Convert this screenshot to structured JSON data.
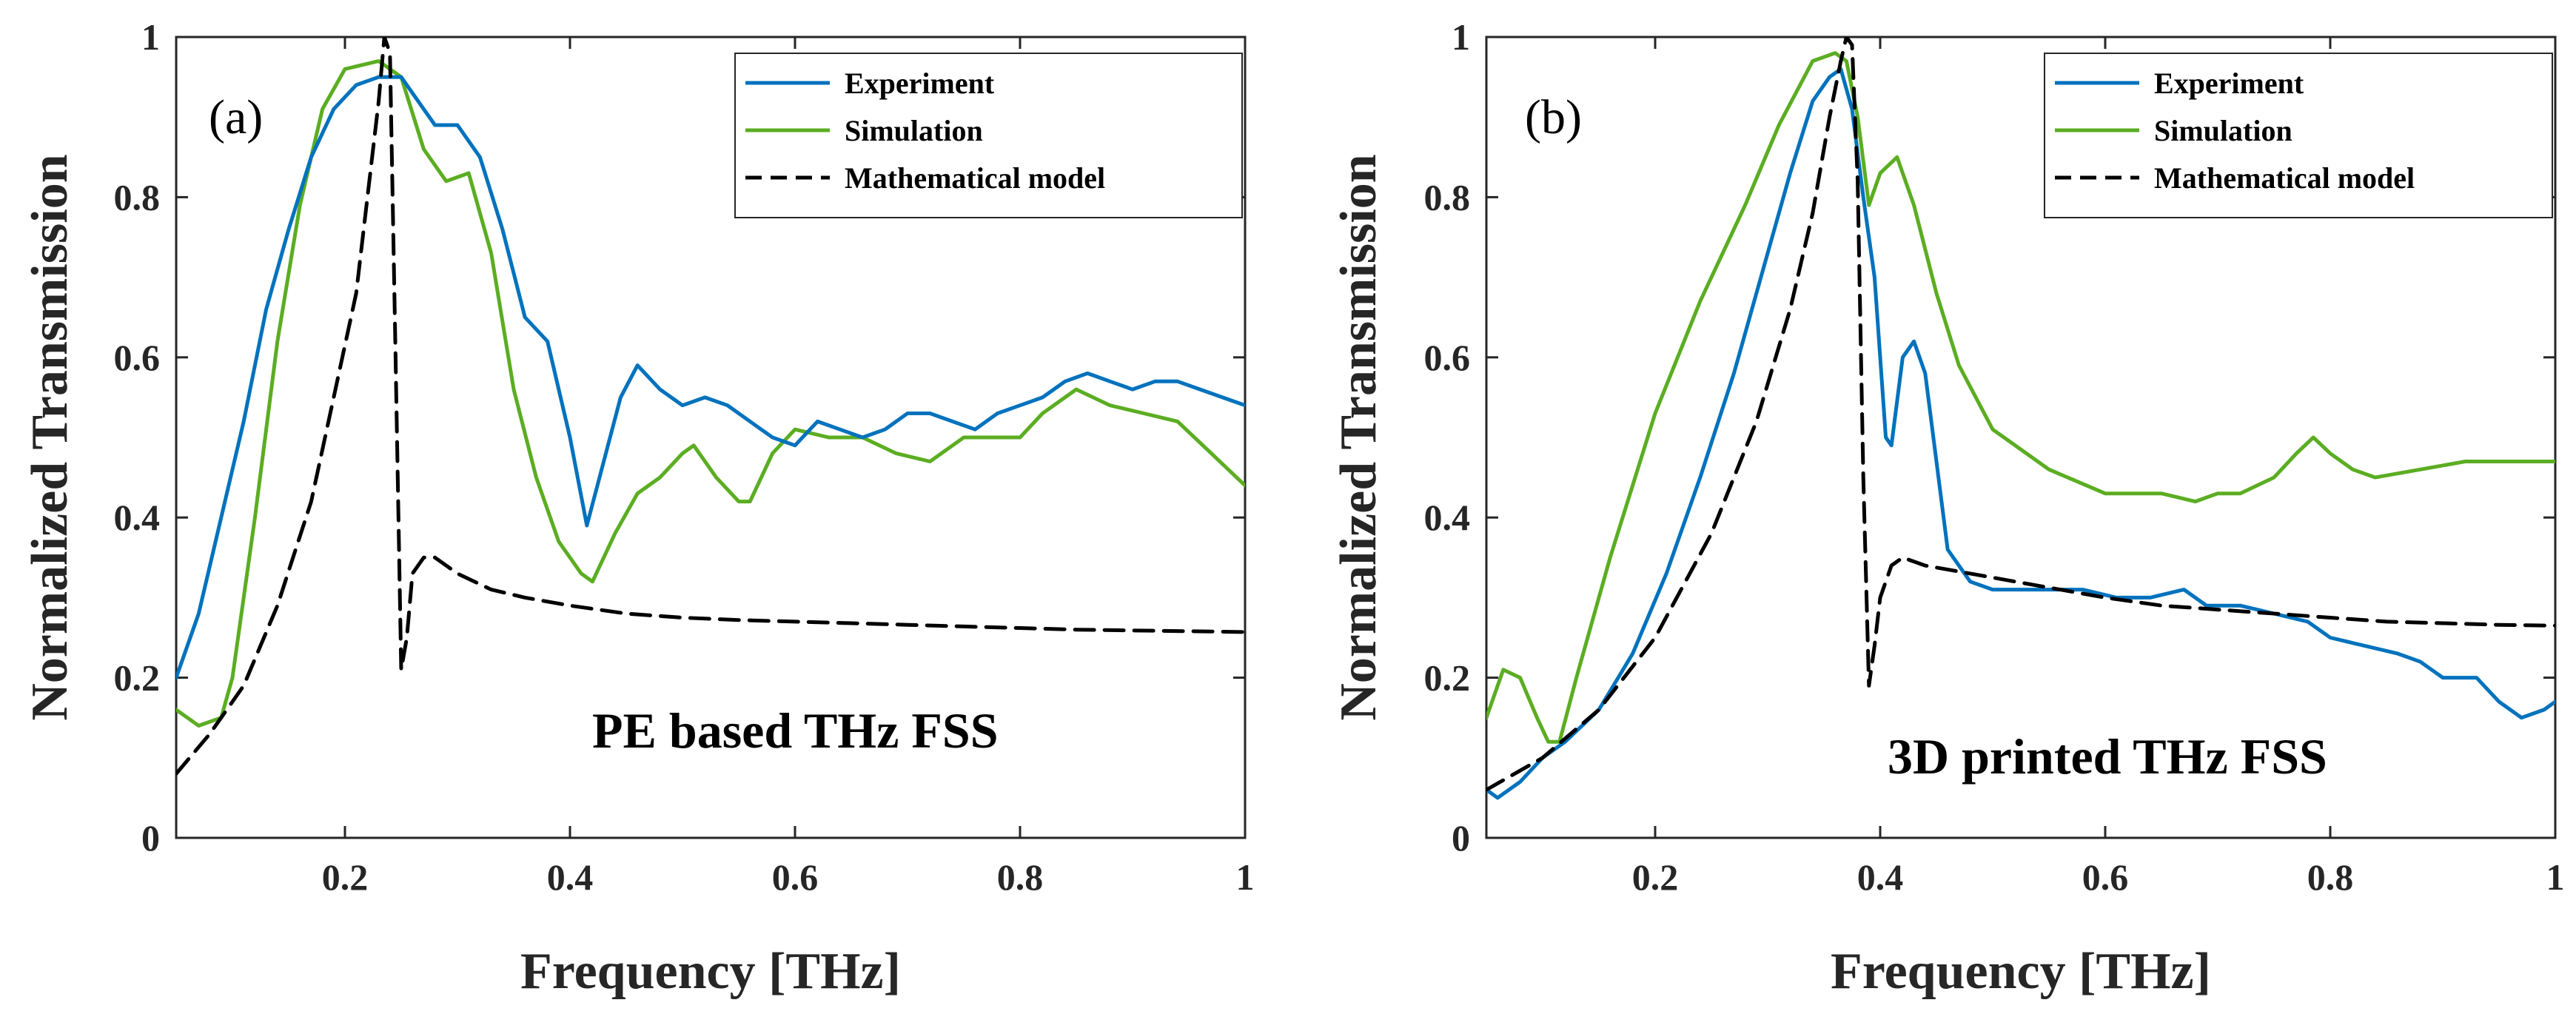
{
  "chart_data": [
    {
      "type": "line",
      "panel_label": "(a)",
      "annotation": "PE based THz FSS",
      "xlabel": "Frequency [THz]",
      "ylabel": "Normalized Transmission",
      "xlim": [
        0.05,
        1.0
      ],
      "ylim": [
        0,
        1
      ],
      "xticks": [
        0.2,
        0.4,
        0.6,
        0.8,
        1.0
      ],
      "xtick_labels": [
        "0.2",
        "0.4",
        "0.6",
        "0.8",
        "1"
      ],
      "yticks": [
        0,
        0.2,
        0.4,
        0.6,
        0.8,
        1.0
      ],
      "ytick_labels": [
        "0",
        "0.2",
        "0.4",
        "0.6",
        "0.8",
        "1"
      ],
      "grid": false,
      "legend_position": "top-right",
      "series": [
        {
          "name": "Experiment",
          "color": "#0072BD",
          "style": "solid",
          "x": [
            0.05,
            0.07,
            0.09,
            0.11,
            0.13,
            0.15,
            0.17,
            0.19,
            0.21,
            0.23,
            0.25,
            0.27,
            0.28,
            0.3,
            0.32,
            0.34,
            0.36,
            0.38,
            0.4,
            0.415,
            0.43,
            0.445,
            0.46,
            0.48,
            0.5,
            0.52,
            0.54,
            0.56,
            0.58,
            0.6,
            0.62,
            0.64,
            0.66,
            0.68,
            0.7,
            0.72,
            0.74,
            0.76,
            0.78,
            0.8,
            0.82,
            0.84,
            0.86,
            0.88,
            0.9,
            0.92,
            0.94,
            0.96,
            0.98,
            1.0
          ],
          "y": [
            0.2,
            0.28,
            0.4,
            0.52,
            0.66,
            0.76,
            0.85,
            0.91,
            0.94,
            0.95,
            0.95,
            0.91,
            0.89,
            0.89,
            0.85,
            0.76,
            0.65,
            0.62,
            0.5,
            0.39,
            0.47,
            0.55,
            0.59,
            0.56,
            0.54,
            0.55,
            0.54,
            0.52,
            0.5,
            0.49,
            0.52,
            0.51,
            0.5,
            0.51,
            0.53,
            0.53,
            0.52,
            0.51,
            0.53,
            0.54,
            0.55,
            0.57,
            0.58,
            0.57,
            0.56,
            0.57,
            0.57,
            0.56,
            0.55,
            0.54
          ]
        },
        {
          "name": "Simulation",
          "color": "#5BAD22",
          "style": "solid",
          "x": [
            0.05,
            0.07,
            0.09,
            0.1,
            0.12,
            0.14,
            0.16,
            0.18,
            0.2,
            0.23,
            0.25,
            0.27,
            0.29,
            0.31,
            0.33,
            0.35,
            0.37,
            0.39,
            0.41,
            0.42,
            0.44,
            0.46,
            0.48,
            0.5,
            0.51,
            0.53,
            0.55,
            0.56,
            0.58,
            0.6,
            0.63,
            0.66,
            0.69,
            0.72,
            0.75,
            0.78,
            0.8,
            0.82,
            0.85,
            0.88,
            0.91,
            0.94,
            0.97,
            1.0
          ],
          "y": [
            0.16,
            0.14,
            0.15,
            0.2,
            0.4,
            0.62,
            0.79,
            0.91,
            0.96,
            0.97,
            0.95,
            0.86,
            0.82,
            0.83,
            0.73,
            0.56,
            0.45,
            0.37,
            0.33,
            0.32,
            0.38,
            0.43,
            0.45,
            0.48,
            0.49,
            0.45,
            0.42,
            0.42,
            0.48,
            0.51,
            0.5,
            0.5,
            0.48,
            0.47,
            0.5,
            0.5,
            0.5,
            0.53,
            0.56,
            0.54,
            0.53,
            0.52,
            0.48,
            0.44
          ]
        },
        {
          "name": "Mathematical model",
          "color": "#000000",
          "style": "dashed",
          "x": [
            0.05,
            0.08,
            0.11,
            0.14,
            0.17,
            0.19,
            0.21,
            0.22,
            0.23,
            0.235,
            0.24,
            0.245,
            0.25,
            0.255,
            0.26,
            0.27,
            0.28,
            0.3,
            0.33,
            0.36,
            0.4,
            0.45,
            0.5,
            0.55,
            0.6,
            0.65,
            0.7,
            0.75,
            0.8,
            0.85,
            0.9,
            0.95,
            1.0
          ],
          "y": [
            0.08,
            0.13,
            0.19,
            0.29,
            0.42,
            0.55,
            0.68,
            0.8,
            0.92,
            1.0,
            0.98,
            0.6,
            0.21,
            0.25,
            0.33,
            0.35,
            0.35,
            0.33,
            0.31,
            0.3,
            0.29,
            0.28,
            0.275,
            0.272,
            0.27,
            0.268,
            0.266,
            0.264,
            0.262,
            0.26,
            0.259,
            0.258,
            0.257
          ]
        }
      ]
    },
    {
      "type": "line",
      "panel_label": "(b)",
      "annotation": "3D printed THz FSS",
      "xlabel": "Frequency [THz]",
      "ylabel": "Normalized Transmission",
      "xlim": [
        0.05,
        1.0
      ],
      "ylim": [
        0,
        1
      ],
      "xticks": [
        0.2,
        0.4,
        0.6,
        0.8,
        1.0
      ],
      "xtick_labels": [
        "0.2",
        "0.4",
        "0.6",
        "0.8",
        "1"
      ],
      "yticks": [
        0,
        0.2,
        0.4,
        0.6,
        0.8,
        1.0
      ],
      "ytick_labels": [
        "0",
        "0.2",
        "0.4",
        "0.6",
        "0.8",
        "1"
      ],
      "grid": false,
      "legend_position": "top-right",
      "series": [
        {
          "name": "Experiment",
          "color": "#0072BD",
          "style": "solid",
          "x": [
            0.05,
            0.06,
            0.08,
            0.1,
            0.12,
            0.15,
            0.18,
            0.21,
            0.24,
            0.27,
            0.3,
            0.32,
            0.34,
            0.355,
            0.365,
            0.375,
            0.385,
            0.395,
            0.405,
            0.41,
            0.42,
            0.43,
            0.44,
            0.45,
            0.46,
            0.48,
            0.5,
            0.52,
            0.55,
            0.58,
            0.61,
            0.64,
            0.67,
            0.69,
            0.72,
            0.75,
            0.78,
            0.8,
            0.83,
            0.86,
            0.88,
            0.9,
            0.93,
            0.95,
            0.97,
            0.99,
            1.0
          ],
          "y": [
            0.06,
            0.05,
            0.07,
            0.1,
            0.12,
            0.16,
            0.23,
            0.33,
            0.45,
            0.58,
            0.73,
            0.83,
            0.92,
            0.95,
            0.96,
            0.91,
            0.8,
            0.7,
            0.5,
            0.49,
            0.6,
            0.62,
            0.58,
            0.47,
            0.36,
            0.32,
            0.31,
            0.31,
            0.31,
            0.31,
            0.3,
            0.3,
            0.31,
            0.29,
            0.29,
            0.28,
            0.27,
            0.25,
            0.24,
            0.23,
            0.22,
            0.2,
            0.2,
            0.17,
            0.15,
            0.16,
            0.17
          ]
        },
        {
          "name": "Simulation",
          "color": "#5BAD22",
          "style": "solid",
          "x": [
            0.05,
            0.065,
            0.08,
            0.095,
            0.105,
            0.115,
            0.13,
            0.16,
            0.2,
            0.24,
            0.28,
            0.31,
            0.34,
            0.36,
            0.37,
            0.38,
            0.39,
            0.4,
            0.415,
            0.43,
            0.45,
            0.47,
            0.5,
            0.55,
            0.6,
            0.65,
            0.68,
            0.7,
            0.72,
            0.75,
            0.77,
            0.785,
            0.8,
            0.82,
            0.84,
            0.88,
            0.92,
            0.96,
            1.0
          ],
          "y": [
            0.15,
            0.21,
            0.2,
            0.15,
            0.12,
            0.12,
            0.2,
            0.35,
            0.53,
            0.67,
            0.79,
            0.89,
            0.97,
            0.98,
            0.97,
            0.9,
            0.79,
            0.83,
            0.85,
            0.79,
            0.68,
            0.59,
            0.51,
            0.46,
            0.43,
            0.43,
            0.42,
            0.43,
            0.43,
            0.45,
            0.48,
            0.5,
            0.48,
            0.46,
            0.45,
            0.46,
            0.47,
            0.47,
            0.47
          ]
        },
        {
          "name": "Mathematical model",
          "color": "#000000",
          "style": "dashed",
          "x": [
            0.05,
            0.1,
            0.15,
            0.2,
            0.25,
            0.29,
            0.32,
            0.34,
            0.355,
            0.365,
            0.37,
            0.375,
            0.38,
            0.385,
            0.39,
            0.395,
            0.4,
            0.41,
            0.42,
            0.44,
            0.48,
            0.52,
            0.56,
            0.6,
            0.65,
            0.7,
            0.75,
            0.8,
            0.85,
            0.9,
            0.95,
            1.0
          ],
          "y": [
            0.06,
            0.1,
            0.16,
            0.25,
            0.38,
            0.52,
            0.66,
            0.78,
            0.9,
            0.97,
            1.0,
            0.99,
            0.82,
            0.45,
            0.19,
            0.24,
            0.3,
            0.34,
            0.35,
            0.34,
            0.33,
            0.32,
            0.31,
            0.3,
            0.29,
            0.285,
            0.28,
            0.275,
            0.27,
            0.268,
            0.266,
            0.265
          ]
        }
      ]
    }
  ]
}
